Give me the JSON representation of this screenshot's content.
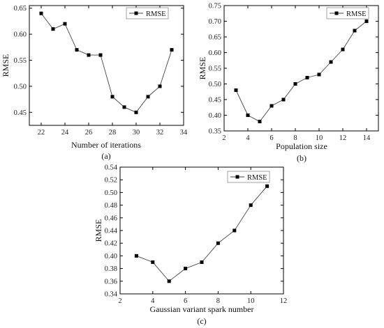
{
  "chart_data": [
    {
      "panel": "(a)",
      "type": "line",
      "xlabel": "Number of iterations",
      "ylabel": "RMSE",
      "xlim": [
        21,
        34
      ],
      "ylim": [
        0.425,
        0.655
      ],
      "xticks": [
        22,
        24,
        26,
        28,
        30,
        32,
        34
      ],
      "yticks": [
        0.45,
        0.5,
        0.55,
        0.6,
        0.65
      ],
      "ytick_labels": [
        "0.45",
        "0.50",
        "0.55",
        "0.60",
        "0.65"
      ],
      "legend_position": "top-right",
      "series": [
        {
          "name": "RMSE",
          "x": [
            22,
            23,
            24,
            25,
            26,
            27,
            28,
            29,
            30,
            31,
            32,
            33
          ],
          "y": [
            0.64,
            0.61,
            0.62,
            0.57,
            0.56,
            0.56,
            0.48,
            0.46,
            0.45,
            0.48,
            0.5,
            0.57
          ]
        }
      ]
    },
    {
      "panel": "(b)",
      "type": "line",
      "xlabel": "Population size",
      "ylabel": "RMSE",
      "xlim": [
        2,
        15
      ],
      "ylim": [
        0.35,
        0.75
      ],
      "xticks": [
        2,
        4,
        6,
        8,
        10,
        12,
        14
      ],
      "yticks": [
        0.35,
        0.4,
        0.45,
        0.5,
        0.55,
        0.6,
        0.65,
        0.7,
        0.75
      ],
      "ytick_labels": [
        "0.35",
        "0.40",
        "0.45",
        "0.50",
        "0.55",
        "0.60",
        "0.65",
        "0.70",
        "0.75"
      ],
      "legend_position": "top-right",
      "series": [
        {
          "name": "RMSE",
          "x": [
            3,
            4,
            5,
            6,
            7,
            8,
            9,
            10,
            11,
            12,
            13,
            14
          ],
          "y": [
            0.48,
            0.4,
            0.38,
            0.43,
            0.45,
            0.5,
            0.52,
            0.53,
            0.57,
            0.61,
            0.67,
            0.7
          ]
        }
      ]
    },
    {
      "panel": "(c)",
      "type": "line",
      "xlabel": "Gaussian variant spark number",
      "ylabel": "RMSE",
      "xlim": [
        2,
        12
      ],
      "ylim": [
        0.34,
        0.54
      ],
      "xticks": [
        2,
        4,
        6,
        8,
        10,
        12
      ],
      "yticks": [
        0.34,
        0.36,
        0.38,
        0.4,
        0.42,
        0.44,
        0.46,
        0.48,
        0.5,
        0.52,
        0.54
      ],
      "ytick_labels": [
        "0.34",
        "0.36",
        "0.38",
        "0.40",
        "0.42",
        "0.44",
        "0.46",
        "0.48",
        "0.50",
        "0.52",
        "0.54"
      ],
      "legend_position": "top-right",
      "series": [
        {
          "name": "RMSE",
          "x": [
            3,
            4,
            5,
            6,
            7,
            8,
            9,
            10,
            11
          ],
          "y": [
            0.4,
            0.39,
            0.36,
            0.38,
            0.39,
            0.42,
            0.44,
            0.48,
            0.51
          ]
        }
      ]
    }
  ]
}
